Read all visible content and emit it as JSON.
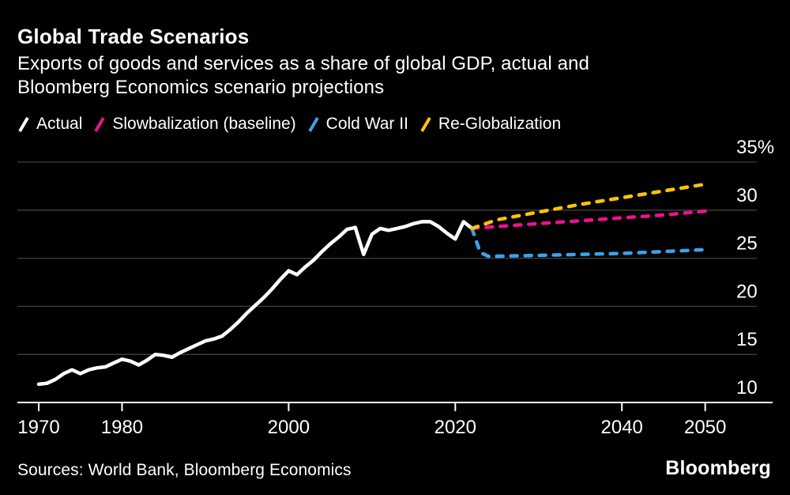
{
  "header": {
    "title": "Global Trade Scenarios",
    "subtitle_lines": [
      "Exports of goods and services as a share of global GDP, actual and",
      "Bloomberg Economics scenario projections"
    ]
  },
  "legend": [
    {
      "label": "Actual",
      "color": "#ffffff",
      "style": "solid"
    },
    {
      "label": "Slowbalization (baseline)",
      "color": "#ed118f",
      "style": "dashed"
    },
    {
      "label": "Cold War II",
      "color": "#3aa3eb",
      "style": "dashed"
    },
    {
      "label": "Re-Globalization",
      "color": "#fcc309",
      "style": "dashed"
    }
  ],
  "chart_data": {
    "type": "line",
    "title": "Global Trade Scenarios",
    "subtitle": "Exports of goods and services as a share of global GDP, actual and Bloomberg Economics scenario projections",
    "unit": "%",
    "grid_on": true,
    "legend_position": "top",
    "x_axis": {
      "range": [
        1967,
        2053
      ],
      "ticks": [
        1970,
        1980,
        2000,
        2020,
        2040,
        2050
      ],
      "tick_labels": [
        "1970",
        "1980",
        "2000",
        "2020",
        "2040",
        "2050"
      ]
    },
    "y_axis": {
      "range": [
        10,
        35
      ],
      "ticks": [
        10,
        15,
        20,
        25,
        30,
        35
      ],
      "tick_labels": [
        "10",
        "15",
        "20",
        "25",
        "30",
        "35%"
      ],
      "side": "right"
    },
    "series": [
      {
        "name": "Actual",
        "color": "#ffffff",
        "dashed": false,
        "points": [
          [
            1970,
            11.9
          ],
          [
            1971,
            12.0
          ],
          [
            1972,
            12.4
          ],
          [
            1973,
            13.0
          ],
          [
            1974,
            13.4
          ],
          [
            1975,
            13.0
          ],
          [
            1976,
            13.4
          ],
          [
            1977,
            13.6
          ],
          [
            1978,
            13.7
          ],
          [
            1979,
            14.1
          ],
          [
            1980,
            14.5
          ],
          [
            1981,
            14.3
          ],
          [
            1982,
            13.9
          ],
          [
            1983,
            14.4
          ],
          [
            1984,
            15.0
          ],
          [
            1985,
            14.9
          ],
          [
            1986,
            14.7
          ],
          [
            1987,
            15.2
          ],
          [
            1988,
            15.6
          ],
          [
            1989,
            16.0
          ],
          [
            1990,
            16.4
          ],
          [
            1991,
            16.6
          ],
          [
            1992,
            16.9
          ],
          [
            1993,
            17.6
          ],
          [
            1994,
            18.4
          ],
          [
            1995,
            19.3
          ],
          [
            1996,
            20.1
          ],
          [
            1997,
            20.9
          ],
          [
            1998,
            21.8
          ],
          [
            1999,
            22.8
          ],
          [
            2000,
            23.7
          ],
          [
            2001,
            23.3
          ],
          [
            2002,
            24.1
          ],
          [
            2003,
            24.8
          ],
          [
            2004,
            25.7
          ],
          [
            2005,
            26.5
          ],
          [
            2006,
            27.2
          ],
          [
            2007,
            28.0
          ],
          [
            2008,
            28.2
          ],
          [
            2009,
            25.4
          ],
          [
            2010,
            27.5
          ],
          [
            2011,
            28.1
          ],
          [
            2012,
            27.9
          ],
          [
            2013,
            28.1
          ],
          [
            2014,
            28.3
          ],
          [
            2015,
            28.6
          ],
          [
            2016,
            28.8
          ],
          [
            2017,
            28.8
          ],
          [
            2018,
            28.3
          ],
          [
            2019,
            27.6
          ],
          [
            2020,
            27.0
          ],
          [
            2021,
            28.8
          ],
          [
            2022,
            28.1
          ]
        ]
      },
      {
        "name": "Slowbalization (baseline)",
        "color": "#ed118f",
        "dashed": true,
        "points": [
          [
            2022,
            28.1
          ],
          [
            2025,
            28.3
          ],
          [
            2030,
            28.6
          ],
          [
            2035,
            28.9
          ],
          [
            2040,
            29.2
          ],
          [
            2045,
            29.5
          ],
          [
            2050,
            29.9
          ]
        ]
      },
      {
        "name": "Cold War II",
        "color": "#3aa3eb",
        "dashed": true,
        "points": [
          [
            2022,
            28.1
          ],
          [
            2023,
            25.6
          ],
          [
            2024,
            25.2
          ],
          [
            2030,
            25.3
          ],
          [
            2035,
            25.4
          ],
          [
            2040,
            25.5
          ],
          [
            2045,
            25.7
          ],
          [
            2050,
            25.9
          ]
        ]
      },
      {
        "name": "Re-Globalization",
        "color": "#fcc309",
        "dashed": true,
        "points": [
          [
            2022,
            28.1
          ],
          [
            2025,
            29.0
          ],
          [
            2030,
            29.8
          ],
          [
            2035,
            30.6
          ],
          [
            2040,
            31.3
          ],
          [
            2045,
            32.0
          ],
          [
            2050,
            32.7
          ]
        ]
      }
    ]
  },
  "footer": {
    "sources": "Sources: World Bank, Bloomberg Economics",
    "brand": "Bloomberg"
  },
  "colors": {
    "background": "#000000",
    "text": "#ffffff",
    "gridline": "#404040",
    "axis_line": "#ffffff"
  }
}
